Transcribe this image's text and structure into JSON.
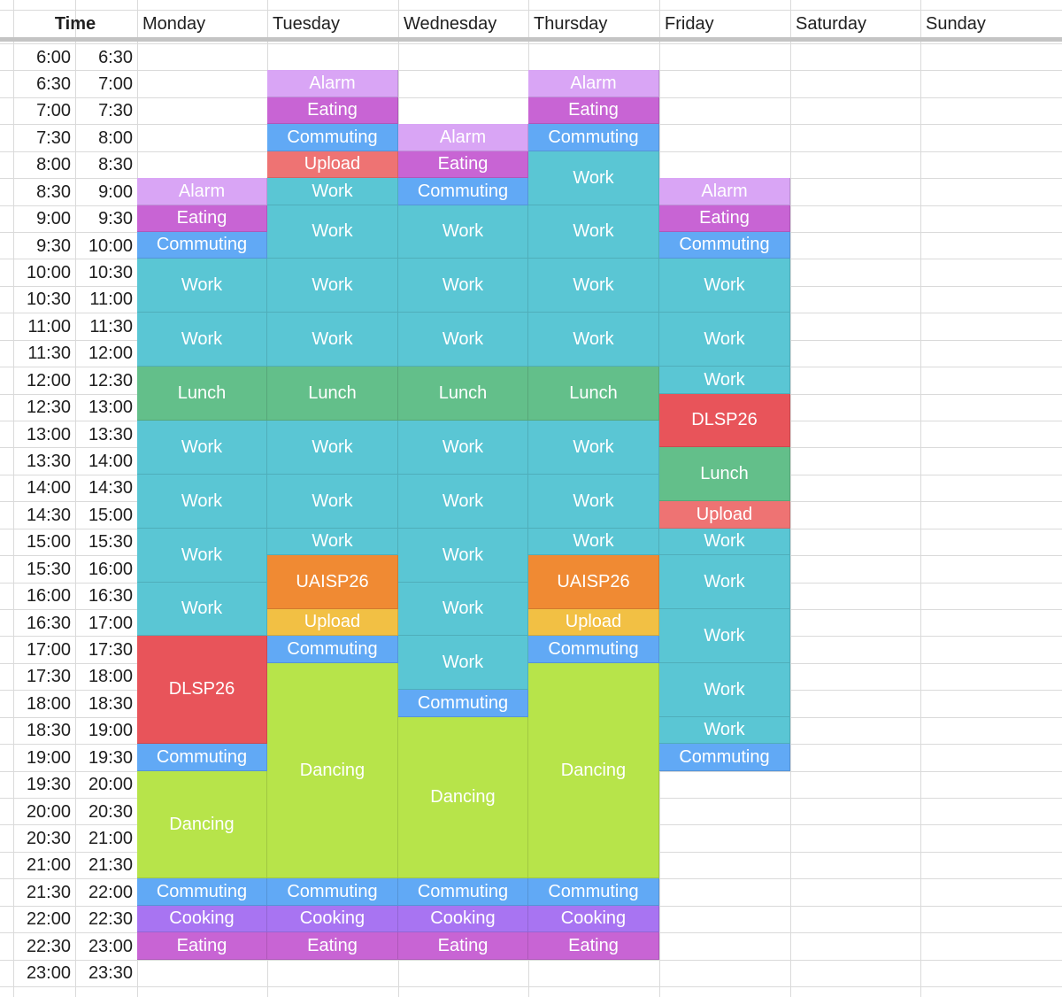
{
  "header": {
    "time": "Time",
    "days": [
      "Monday",
      "Tuesday",
      "Wednesday",
      "Thursday",
      "Friday",
      "Saturday",
      "Sunday"
    ]
  },
  "time_slots": [
    [
      "6:00",
      "6:30"
    ],
    [
      "6:30",
      "7:00"
    ],
    [
      "7:00",
      "7:30"
    ],
    [
      "7:30",
      "8:00"
    ],
    [
      "8:00",
      "8:30"
    ],
    [
      "8:30",
      "9:00"
    ],
    [
      "9:00",
      "9:30"
    ],
    [
      "9:30",
      "10:00"
    ],
    [
      "10:00",
      "10:30"
    ],
    [
      "10:30",
      "11:00"
    ],
    [
      "11:00",
      "11:30"
    ],
    [
      "11:30",
      "12:00"
    ],
    [
      "12:00",
      "12:30"
    ],
    [
      "12:30",
      "13:00"
    ],
    [
      "13:00",
      "13:30"
    ],
    [
      "13:30",
      "14:00"
    ],
    [
      "14:00",
      "14:30"
    ],
    [
      "14:30",
      "15:00"
    ],
    [
      "15:00",
      "15:30"
    ],
    [
      "15:30",
      "16:00"
    ],
    [
      "16:00",
      "16:30"
    ],
    [
      "16:30",
      "17:00"
    ],
    [
      "17:00",
      "17:30"
    ],
    [
      "17:30",
      "18:00"
    ],
    [
      "18:00",
      "18:30"
    ],
    [
      "18:30",
      "19:00"
    ],
    [
      "19:00",
      "19:30"
    ],
    [
      "19:30",
      "20:00"
    ],
    [
      "20:00",
      "20:30"
    ],
    [
      "20:30",
      "21:00"
    ],
    [
      "21:00",
      "21:30"
    ],
    [
      "21:30",
      "22:00"
    ],
    [
      "22:00",
      "22:30"
    ],
    [
      "22:30",
      "23:00"
    ],
    [
      "23:00",
      "23:30"
    ]
  ],
  "colors": {
    "Alarm": "#d9a5f5",
    "Eating": "#c864d4",
    "Commuting": "#61a9f5",
    "Work": "#5ac6d4",
    "Upload_red": "#ee7373",
    "Upload_yellow": "#f2c044",
    "Lunch": "#63bf8a",
    "DLSP26": "#e8545a",
    "UAISP26": "#f08a33",
    "Dancing": "#b7e44a",
    "Cooking": "#a874f2"
  },
  "events": [
    {
      "day": 0,
      "start": 5,
      "span": 1,
      "label": "Alarm",
      "color": "Alarm"
    },
    {
      "day": 0,
      "start": 6,
      "span": 1,
      "label": "Eating",
      "color": "Eating"
    },
    {
      "day": 0,
      "start": 7,
      "span": 1,
      "label": "Commuting",
      "color": "Commuting"
    },
    {
      "day": 0,
      "start": 8,
      "span": 2,
      "label": "Work",
      "color": "Work"
    },
    {
      "day": 0,
      "start": 10,
      "span": 2,
      "label": "Work",
      "color": "Work"
    },
    {
      "day": 0,
      "start": 12,
      "span": 2,
      "label": "Lunch",
      "color": "Lunch"
    },
    {
      "day": 0,
      "start": 14,
      "span": 2,
      "label": "Work",
      "color": "Work"
    },
    {
      "day": 0,
      "start": 16,
      "span": 2,
      "label": "Work",
      "color": "Work"
    },
    {
      "day": 0,
      "start": 18,
      "span": 2,
      "label": "Work",
      "color": "Work"
    },
    {
      "day": 0,
      "start": 20,
      "span": 2,
      "label": "Work",
      "color": "Work"
    },
    {
      "day": 0,
      "start": 22,
      "span": 4,
      "label": "DLSP26",
      "color": "DLSP26"
    },
    {
      "day": 0,
      "start": 26,
      "span": 1,
      "label": "Commuting",
      "color": "Commuting"
    },
    {
      "day": 0,
      "start": 27,
      "span": 4,
      "label": "Dancing",
      "color": "Dancing"
    },
    {
      "day": 0,
      "start": 31,
      "span": 1,
      "label": "Commuting",
      "color": "Commuting"
    },
    {
      "day": 0,
      "start": 32,
      "span": 1,
      "label": "Cooking",
      "color": "Cooking"
    },
    {
      "day": 0,
      "start": 33,
      "span": 1,
      "label": "Eating",
      "color": "Eating"
    },
    {
      "day": 1,
      "start": 1,
      "span": 1,
      "label": "Alarm",
      "color": "Alarm"
    },
    {
      "day": 1,
      "start": 2,
      "span": 1,
      "label": "Eating",
      "color": "Eating"
    },
    {
      "day": 1,
      "start": 3,
      "span": 1,
      "label": "Commuting",
      "color": "Commuting"
    },
    {
      "day": 1,
      "start": 4,
      "span": 1,
      "label": "Upload",
      "color": "Upload_red"
    },
    {
      "day": 1,
      "start": 5,
      "span": 1,
      "label": "Work",
      "color": "Work"
    },
    {
      "day": 1,
      "start": 6,
      "span": 2,
      "label": "Work",
      "color": "Work"
    },
    {
      "day": 1,
      "start": 8,
      "span": 2,
      "label": "Work",
      "color": "Work"
    },
    {
      "day": 1,
      "start": 10,
      "span": 2,
      "label": "Work",
      "color": "Work"
    },
    {
      "day": 1,
      "start": 12,
      "span": 2,
      "label": "Lunch",
      "color": "Lunch"
    },
    {
      "day": 1,
      "start": 14,
      "span": 2,
      "label": "Work",
      "color": "Work"
    },
    {
      "day": 1,
      "start": 16,
      "span": 2,
      "label": "Work",
      "color": "Work"
    },
    {
      "day": 1,
      "start": 18,
      "span": 1,
      "label": "Work",
      "color": "Work"
    },
    {
      "day": 1,
      "start": 19,
      "span": 2,
      "label": "UAISP26",
      "color": "UAISP26"
    },
    {
      "day": 1,
      "start": 21,
      "span": 1,
      "label": "Upload",
      "color": "Upload_yellow"
    },
    {
      "day": 1,
      "start": 22,
      "span": 1,
      "label": "Commuting",
      "color": "Commuting"
    },
    {
      "day": 1,
      "start": 23,
      "span": 8,
      "label": "Dancing",
      "color": "Dancing"
    },
    {
      "day": 1,
      "start": 31,
      "span": 1,
      "label": "Commuting",
      "color": "Commuting"
    },
    {
      "day": 1,
      "start": 32,
      "span": 1,
      "label": "Cooking",
      "color": "Cooking"
    },
    {
      "day": 1,
      "start": 33,
      "span": 1,
      "label": "Eating",
      "color": "Eating"
    },
    {
      "day": 2,
      "start": 3,
      "span": 1,
      "label": "Alarm",
      "color": "Alarm"
    },
    {
      "day": 2,
      "start": 4,
      "span": 1,
      "label": "Eating",
      "color": "Eating"
    },
    {
      "day": 2,
      "start": 5,
      "span": 1,
      "label": "Commuting",
      "color": "Commuting"
    },
    {
      "day": 2,
      "start": 6,
      "span": 2,
      "label": "Work",
      "color": "Work"
    },
    {
      "day": 2,
      "start": 8,
      "span": 2,
      "label": "Work",
      "color": "Work"
    },
    {
      "day": 2,
      "start": 10,
      "span": 2,
      "label": "Work",
      "color": "Work"
    },
    {
      "day": 2,
      "start": 12,
      "span": 2,
      "label": "Lunch",
      "color": "Lunch"
    },
    {
      "day": 2,
      "start": 14,
      "span": 2,
      "label": "Work",
      "color": "Work"
    },
    {
      "day": 2,
      "start": 16,
      "span": 2,
      "label": "Work",
      "color": "Work"
    },
    {
      "day": 2,
      "start": 18,
      "span": 2,
      "label": "Work",
      "color": "Work"
    },
    {
      "day": 2,
      "start": 20,
      "span": 2,
      "label": "Work",
      "color": "Work"
    },
    {
      "day": 2,
      "start": 22,
      "span": 2,
      "label": "Work",
      "color": "Work"
    },
    {
      "day": 2,
      "start": 24,
      "span": 1,
      "label": "Commuting",
      "color": "Commuting"
    },
    {
      "day": 2,
      "start": 25,
      "span": 6,
      "label": "Dancing",
      "color": "Dancing"
    },
    {
      "day": 2,
      "start": 31,
      "span": 1,
      "label": "Commuting",
      "color": "Commuting"
    },
    {
      "day": 2,
      "start": 32,
      "span": 1,
      "label": "Cooking",
      "color": "Cooking"
    },
    {
      "day": 2,
      "start": 33,
      "span": 1,
      "label": "Eating",
      "color": "Eating"
    },
    {
      "day": 3,
      "start": 1,
      "span": 1,
      "label": "Alarm",
      "color": "Alarm"
    },
    {
      "day": 3,
      "start": 2,
      "span": 1,
      "label": "Eating",
      "color": "Eating"
    },
    {
      "day": 3,
      "start": 3,
      "span": 1,
      "label": "Commuting",
      "color": "Commuting"
    },
    {
      "day": 3,
      "start": 4,
      "span": 2,
      "label": "Work",
      "color": "Work"
    },
    {
      "day": 3,
      "start": 6,
      "span": 2,
      "label": "Work",
      "color": "Work"
    },
    {
      "day": 3,
      "start": 8,
      "span": 2,
      "label": "Work",
      "color": "Work"
    },
    {
      "day": 3,
      "start": 10,
      "span": 2,
      "label": "Work",
      "color": "Work"
    },
    {
      "day": 3,
      "start": 12,
      "span": 2,
      "label": "Lunch",
      "color": "Lunch"
    },
    {
      "day": 3,
      "start": 14,
      "span": 2,
      "label": "Work",
      "color": "Work"
    },
    {
      "day": 3,
      "start": 16,
      "span": 2,
      "label": "Work",
      "color": "Work"
    },
    {
      "day": 3,
      "start": 18,
      "span": 1,
      "label": "Work",
      "color": "Work"
    },
    {
      "day": 3,
      "start": 19,
      "span": 2,
      "label": "UAISP26",
      "color": "UAISP26"
    },
    {
      "day": 3,
      "start": 21,
      "span": 1,
      "label": "Upload",
      "color": "Upload_yellow"
    },
    {
      "day": 3,
      "start": 22,
      "span": 1,
      "label": "Commuting",
      "color": "Commuting"
    },
    {
      "day": 3,
      "start": 23,
      "span": 8,
      "label": "Dancing",
      "color": "Dancing"
    },
    {
      "day": 3,
      "start": 31,
      "span": 1,
      "label": "Commuting",
      "color": "Commuting"
    },
    {
      "day": 3,
      "start": 32,
      "span": 1,
      "label": "Cooking",
      "color": "Cooking"
    },
    {
      "day": 3,
      "start": 33,
      "span": 1,
      "label": "Eating",
      "color": "Eating"
    },
    {
      "day": 4,
      "start": 5,
      "span": 1,
      "label": "Alarm",
      "color": "Alarm"
    },
    {
      "day": 4,
      "start": 6,
      "span": 1,
      "label": "Eating",
      "color": "Eating"
    },
    {
      "day": 4,
      "start": 7,
      "span": 1,
      "label": "Commuting",
      "color": "Commuting"
    },
    {
      "day": 4,
      "start": 8,
      "span": 2,
      "label": "Work",
      "color": "Work"
    },
    {
      "day": 4,
      "start": 10,
      "span": 2,
      "label": "Work",
      "color": "Work"
    },
    {
      "day": 4,
      "start": 12,
      "span": 1,
      "label": "Work",
      "color": "Work"
    },
    {
      "day": 4,
      "start": 13,
      "span": 2,
      "label": "DLSP26",
      "color": "DLSP26"
    },
    {
      "day": 4,
      "start": 15,
      "span": 2,
      "label": "Lunch",
      "color": "Lunch"
    },
    {
      "day": 4,
      "start": 17,
      "span": 1,
      "label": "Upload",
      "color": "Upload_red"
    },
    {
      "day": 4,
      "start": 18,
      "span": 1,
      "label": "Work",
      "color": "Work"
    },
    {
      "day": 4,
      "start": 19,
      "span": 2,
      "label": "Work",
      "color": "Work"
    },
    {
      "day": 4,
      "start": 21,
      "span": 2,
      "label": "Work",
      "color": "Work"
    },
    {
      "day": 4,
      "start": 23,
      "span": 2,
      "label": "Work",
      "color": "Work"
    },
    {
      "day": 4,
      "start": 25,
      "span": 1,
      "label": "Work",
      "color": "Work"
    },
    {
      "day": 4,
      "start": 26,
      "span": 1,
      "label": "Commuting",
      "color": "Commuting"
    }
  ]
}
